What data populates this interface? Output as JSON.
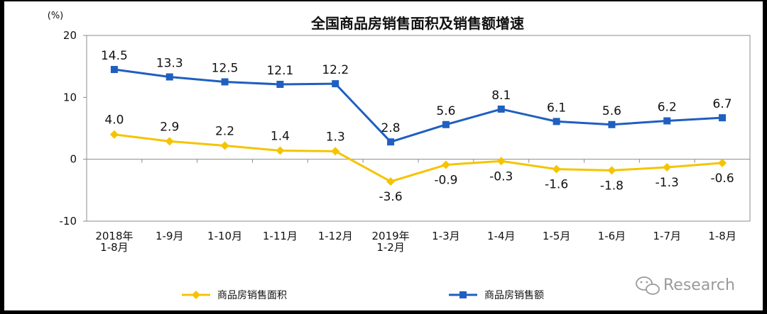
{
  "chart_data": {
    "type": "line",
    "title": "全国商品房销售面积及销售额增速",
    "y_unit": "(%)",
    "ylim": [
      -10,
      20
    ],
    "yticks": [
      -10,
      0,
      10,
      20
    ],
    "grid": false,
    "legend_position": "bottom",
    "categories": [
      [
        "2018年",
        "1-8月"
      ],
      [
        "1-9月"
      ],
      [
        "1-10月"
      ],
      [
        "1-11月"
      ],
      [
        "1-12月"
      ],
      [
        "2019年",
        "1-2月"
      ],
      [
        "1-3月"
      ],
      [
        "1-4月"
      ],
      [
        "1-5月"
      ],
      [
        "1-6月"
      ],
      [
        "1-7月"
      ],
      [
        "1-8月"
      ]
    ],
    "series": [
      {
        "name": "商品房销售面积",
        "color": "#f5c400",
        "marker": "diamond",
        "values": [
          4.0,
          2.9,
          2.2,
          1.4,
          1.3,
          -3.6,
          -0.9,
          -0.3,
          -1.6,
          -1.8,
          -1.3,
          -0.6
        ],
        "labels": [
          "4.0",
          "2.9",
          "2.2",
          "1.4",
          "1.3",
          "-3.6",
          "-0.9",
          "-0.3",
          "-1.6",
          "-1.8",
          "-1.3",
          "-0.6"
        ]
      },
      {
        "name": "商品房销售额",
        "color": "#1f5fbf",
        "marker": "square",
        "values": [
          14.5,
          13.3,
          12.5,
          12.1,
          12.2,
          2.8,
          5.6,
          8.1,
          6.1,
          5.6,
          6.2,
          6.7
        ],
        "labels": [
          "14.5",
          "13.3",
          "12.5",
          "12.1",
          "12.2",
          "2.8",
          "5.6",
          "8.1",
          "6.1",
          "5.6",
          "6.2",
          "6.7"
        ]
      }
    ]
  },
  "watermark": {
    "text": "Research",
    "icon": "wechat-icon"
  }
}
